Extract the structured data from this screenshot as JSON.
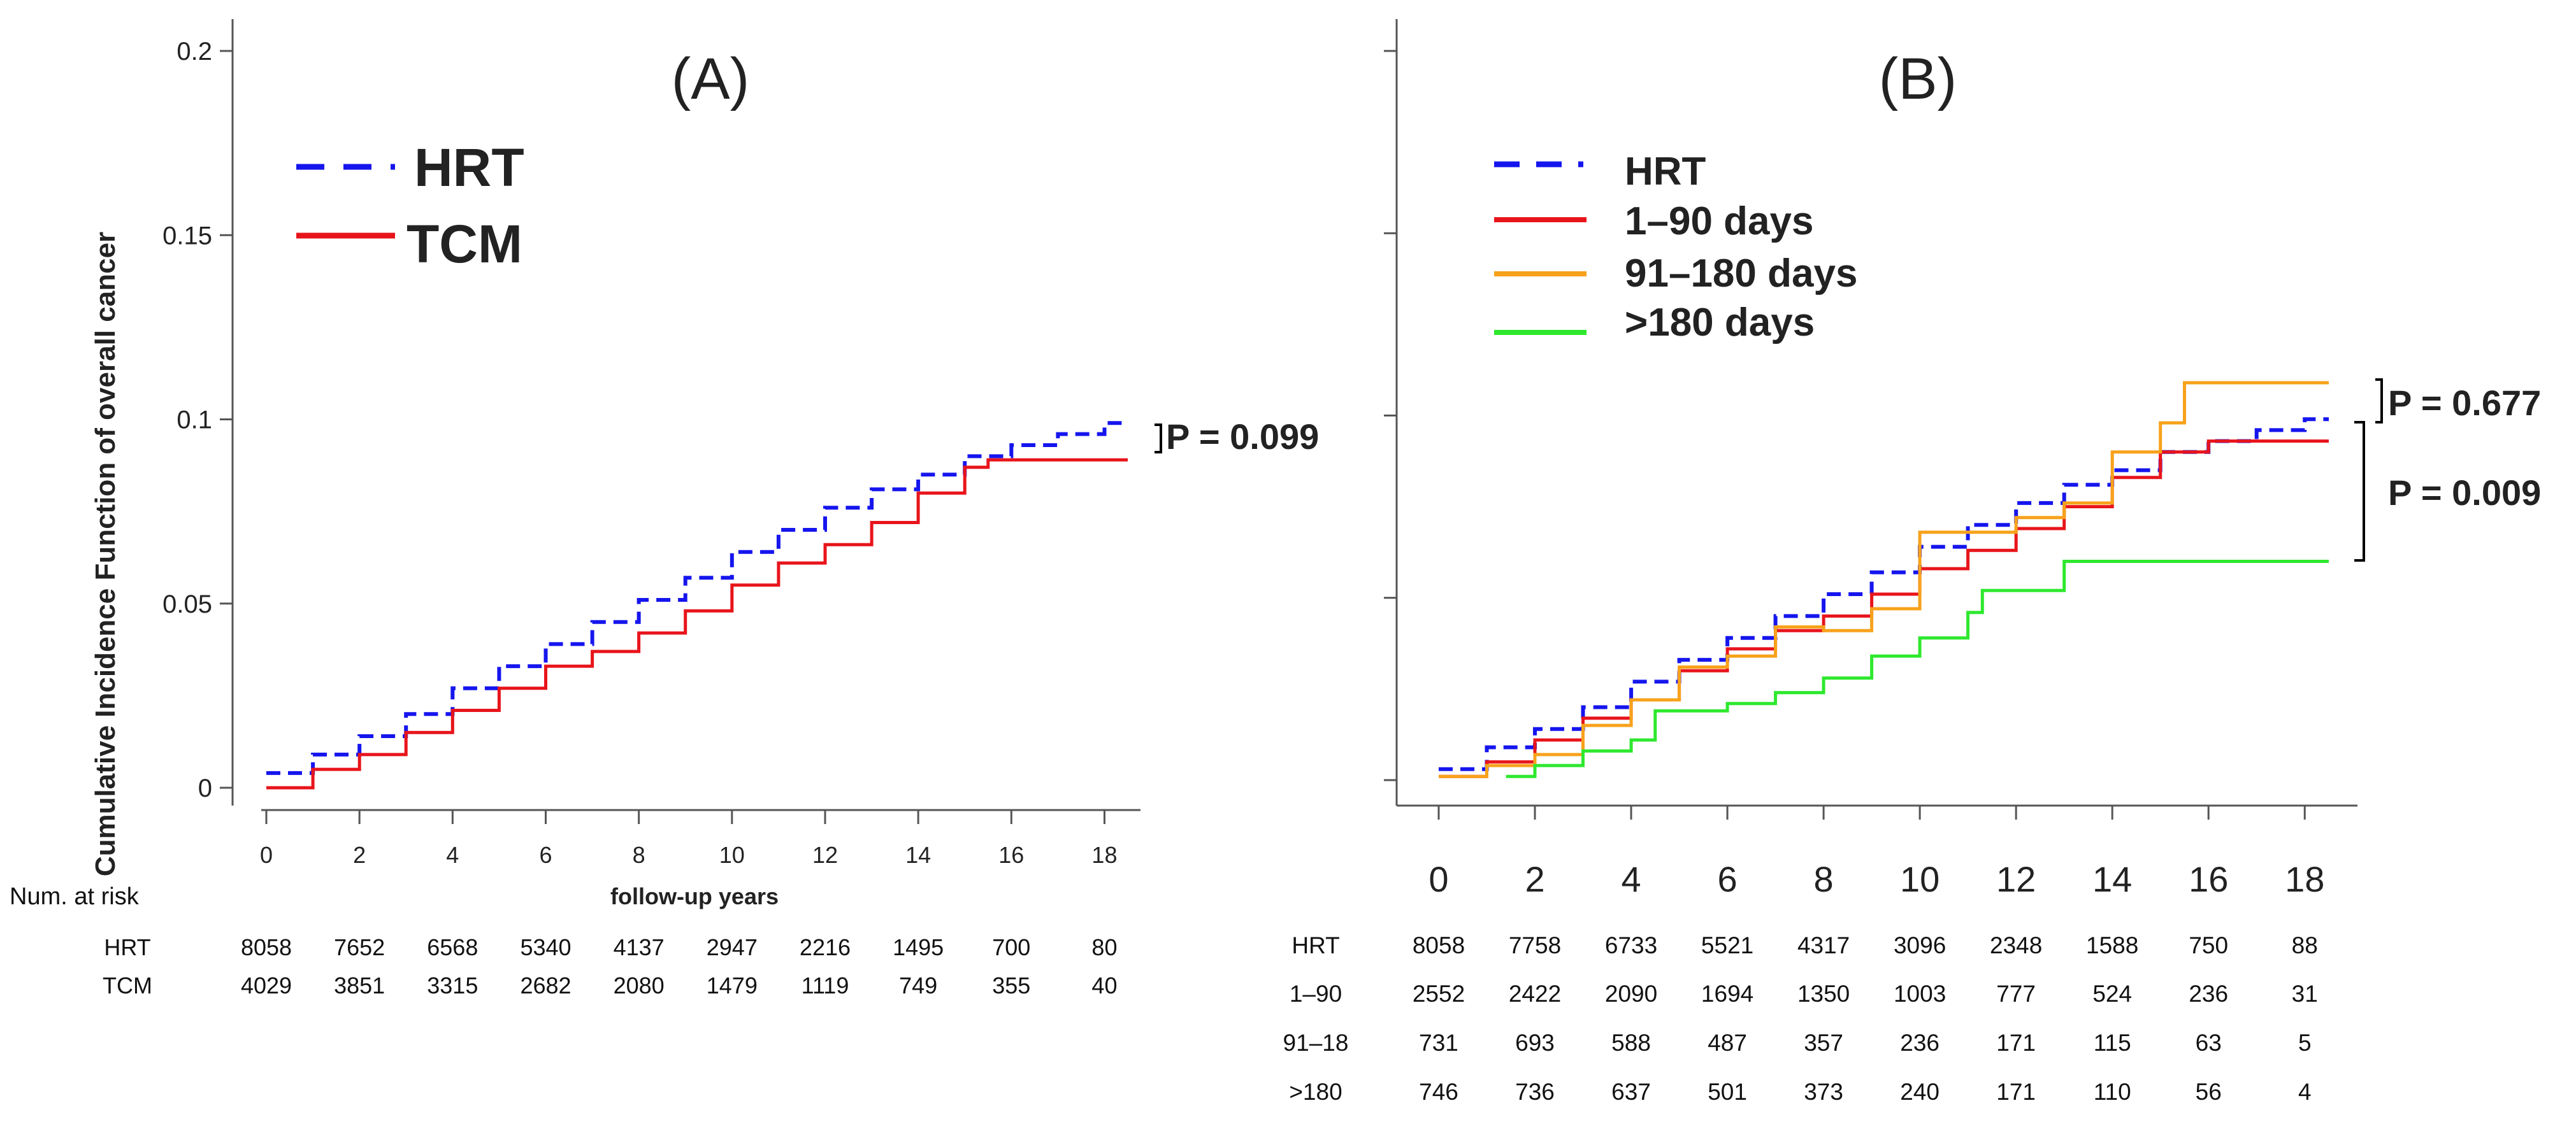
{
  "chart_data": [
    {
      "type": "line",
      "panel_label": "(A)",
      "ylabel": "Cumulative Incidence Function of overall cancer",
      "xlabel": "follow-up years",
      "xlim": [
        0,
        18.5
      ],
      "ylim": [
        0,
        0.2
      ],
      "x_ticks": [
        0,
        2,
        4,
        6,
        8,
        10,
        12,
        14,
        16,
        18
      ],
      "x_tick_labels": [
        "0",
        "2",
        "4",
        "6",
        "8",
        "10",
        "12",
        "14",
        "16",
        "18"
      ],
      "y_ticks": [
        0,
        0.05,
        0.1,
        0.15,
        0.2
      ],
      "y_tick_labels": [
        "0",
        "0.05",
        "0.1",
        "0.15",
        "0.2"
      ],
      "legend_placement": "top-left",
      "series": [
        {
          "name": "HRT",
          "color": "#1515ee",
          "style": "dashed",
          "x": [
            0,
            1,
            2,
            3,
            4,
            5,
            6,
            7,
            8,
            9,
            10,
            11,
            12,
            13,
            14,
            15,
            16,
            17,
            18,
            18.5
          ],
          "y": [
            0.004,
            0.009,
            0.014,
            0.02,
            0.027,
            0.033,
            0.039,
            0.045,
            0.051,
            0.057,
            0.064,
            0.07,
            0.076,
            0.081,
            0.085,
            0.09,
            0.093,
            0.096,
            0.099,
            0.099
          ]
        },
        {
          "name": "TCM",
          "color": "#e8141b",
          "style": "solid",
          "x": [
            0,
            1,
            2,
            3,
            4,
            5,
            6,
            7,
            8,
            9,
            10,
            11,
            12,
            13,
            14,
            15,
            15.5,
            16,
            17,
            18,
            18.5
          ],
          "y": [
            0,
            0.005,
            0.009,
            0.015,
            0.021,
            0.027,
            0.033,
            0.037,
            0.042,
            0.048,
            0.055,
            0.061,
            0.066,
            0.072,
            0.08,
            0.087,
            0.089,
            0.089,
            0.089,
            0.089,
            0.089
          ]
        }
      ],
      "annotations": [
        {
          "text": "P = 0.099"
        }
      ],
      "risk_table": {
        "title": "Num. at risk",
        "rows": [
          {
            "label": "HRT",
            "values": [
              8058,
              7652,
              6568,
              5340,
              4137,
              2947,
              2216,
              1495,
              700,
              80
            ]
          },
          {
            "label": "TCM",
            "values": [
              4029,
              3851,
              3315,
              2682,
              2080,
              1479,
              1119,
              749,
              355,
              40
            ]
          }
        ]
      }
    },
    {
      "type": "line",
      "panel_label": "(B)",
      "xlim": [
        0,
        18.5
      ],
      "ylim": [
        0,
        0.2
      ],
      "x_ticks": [
        0,
        2,
        4,
        6,
        8,
        10,
        12,
        14,
        16,
        18
      ],
      "x_tick_labels": [
        "0",
        "2",
        "4",
        "6",
        "8",
        "10",
        "12",
        "14",
        "16",
        "18"
      ],
      "y_ticks": [
        0,
        0.05,
        0.1,
        0.15,
        0.2
      ],
      "legend_placement": "top-left",
      "series": [
        {
          "name": "HRT",
          "color": "#1515ee",
          "style": "dashed",
          "x": [
            0,
            1,
            2,
            3,
            4,
            5,
            6,
            7,
            8,
            9,
            10,
            11,
            12,
            13,
            14,
            15,
            16,
            17,
            18,
            18.5
          ],
          "y": [
            0.003,
            0.009,
            0.014,
            0.02,
            0.027,
            0.033,
            0.039,
            0.045,
            0.051,
            0.057,
            0.064,
            0.07,
            0.076,
            0.081,
            0.085,
            0.09,
            0.093,
            0.096,
            0.099,
            0.099
          ]
        },
        {
          "name": "1–90 days",
          "color": "#e8141b",
          "style": "solid",
          "x": [
            0,
            1,
            2,
            3,
            4,
            5,
            6,
            7,
            8,
            9,
            10,
            11,
            12,
            13,
            14,
            15,
            16,
            17,
            18,
            18.5
          ],
          "y": [
            0.001,
            0.005,
            0.011,
            0.017,
            0.022,
            0.03,
            0.036,
            0.041,
            0.045,
            0.051,
            0.058,
            0.063,
            0.069,
            0.075,
            0.083,
            0.09,
            0.093,
            0.093,
            0.093,
            0.093
          ]
        },
        {
          "name": "91–180 days",
          "color": "#f7a21b",
          "style": "solid",
          "x": [
            0,
            1,
            2,
            3,
            4,
            5,
            6,
            7,
            8,
            9,
            10,
            11,
            12,
            13,
            14,
            15,
            15.5,
            16,
            17,
            18,
            18.5
          ],
          "y": [
            0.001,
            0.004,
            0.007,
            0.015,
            0.022,
            0.031,
            0.034,
            0.042,
            0.041,
            0.047,
            0.068,
            0.068,
            0.072,
            0.076,
            0.09,
            0.098,
            0.109,
            0.109,
            0.109,
            0.109,
            0.109
          ]
        },
        {
          "name": ">180 days",
          "color": "#2ee82e",
          "style": "solid",
          "x": [
            1.4,
            2,
            3,
            4,
            4.5,
            5,
            6,
            7,
            8,
            9,
            10,
            11,
            11.3,
            12,
            13,
            14,
            15,
            16,
            17,
            18,
            18.5
          ],
          "y": [
            0.001,
            0.004,
            0.008,
            0.011,
            0.019,
            0.019,
            0.021,
            0.024,
            0.028,
            0.034,
            0.039,
            0.046,
            0.052,
            0.052,
            0.06,
            0.06,
            0.06,
            0.06,
            0.06,
            0.06,
            0.06
          ]
        }
      ],
      "annotations": [
        {
          "text": "P = 0.677"
        },
        {
          "text": "P = 0.009"
        }
      ],
      "risk_table": {
        "rows": [
          {
            "label": "HRT",
            "values": [
              8058,
              7758,
              6733,
              5521,
              4317,
              3096,
              2348,
              1588,
              750,
              88
            ]
          },
          {
            "label": "1–90",
            "values": [
              2552,
              2422,
              2090,
              1694,
              1350,
              1003,
              777,
              524,
              236,
              31
            ]
          },
          {
            "label": "91–18",
            "values": [
              731,
              693,
              588,
              487,
              357,
              236,
              171,
              115,
              63,
              5
            ]
          },
          {
            "label": ">180",
            "values": [
              746,
              736,
              637,
              501,
              373,
              240,
              171,
              110,
              56,
              4
            ]
          }
        ]
      }
    }
  ]
}
